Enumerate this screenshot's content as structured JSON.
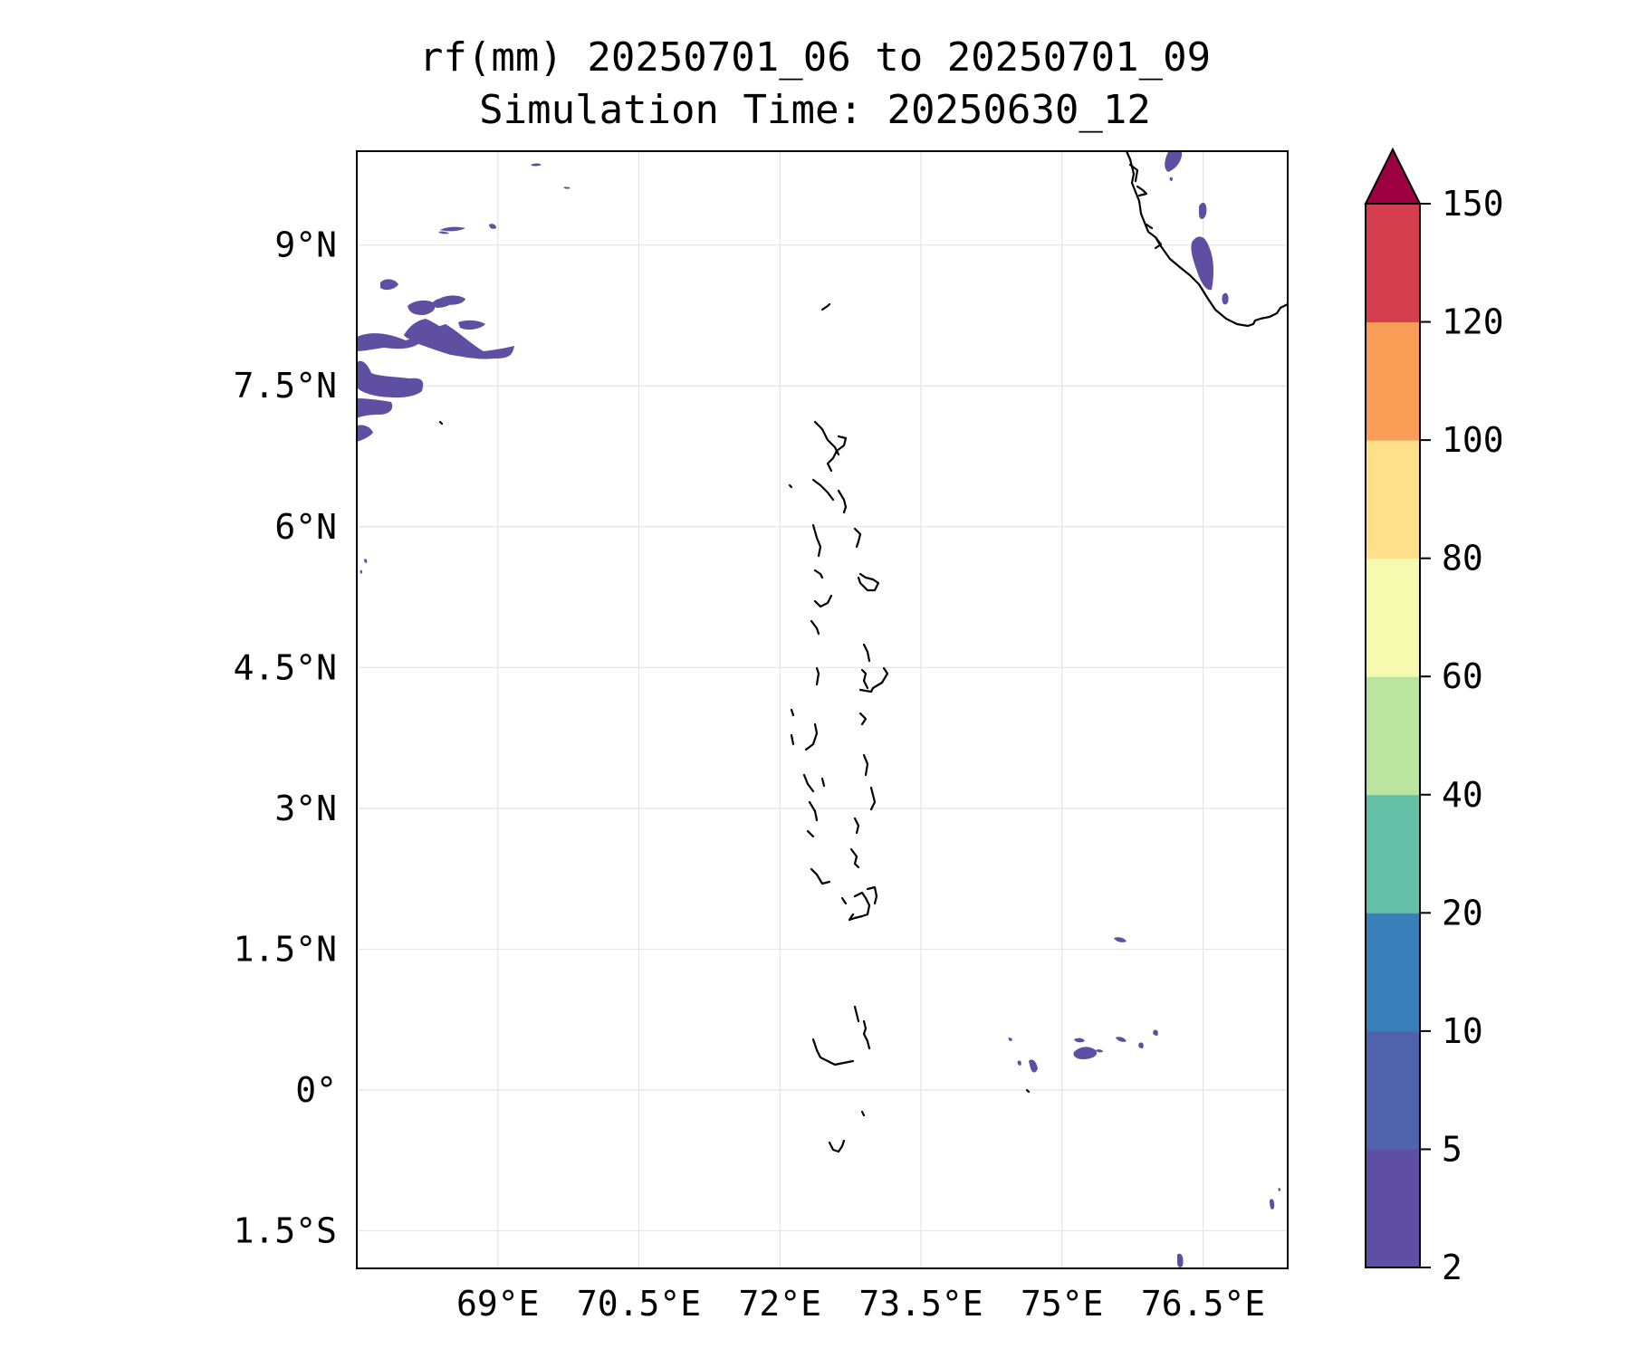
{
  "title": {
    "line1": "rf(mm) 20250701_06 to 20250701_09",
    "line2": "Simulation Time: 20250630_12"
  },
  "map": {
    "lon_range": [
      67.5,
      77.4
    ],
    "lat_range": [
      -1.9,
      10.0
    ],
    "lon_ticks": [
      {
        "value": 69.0,
        "label": "69°E"
      },
      {
        "value": 70.5,
        "label": "70.5°E"
      },
      {
        "value": 72.0,
        "label": "72°E"
      },
      {
        "value": 73.5,
        "label": "73.5°E"
      },
      {
        "value": 75.0,
        "label": "75°E"
      },
      {
        "value": 76.5,
        "label": "76.5°E"
      }
    ],
    "lat_ticks": [
      {
        "value": 9.0,
        "label": "9°N"
      },
      {
        "value": 7.5,
        "label": "7.5°N"
      },
      {
        "value": 6.0,
        "label": "6°N"
      },
      {
        "value": 4.5,
        "label": "4.5°N"
      },
      {
        "value": 3.0,
        "label": "3°N"
      },
      {
        "value": 1.5,
        "label": "1.5°N"
      },
      {
        "value": 0.0,
        "label": "0°"
      },
      {
        "value": -1.5,
        "label": "1.5°S"
      }
    ],
    "gridlines": true,
    "rain_color": "#5e4fa2",
    "coast_color": "#000000"
  },
  "colorbar": {
    "levels": [
      "2",
      "5",
      "10",
      "20",
      "40",
      "60",
      "80",
      "100",
      "120",
      "150"
    ],
    "colors": [
      "#5e4fa2",
      "#4f63ac",
      "#3a7fb9",
      "#63c0a7",
      "#bce4a1",
      "#f4fbae",
      "#fde089",
      "#f99c56",
      "#d53e4f"
    ],
    "extend_color": "#9e0142",
    "extend": "max",
    "placement": "right"
  }
}
